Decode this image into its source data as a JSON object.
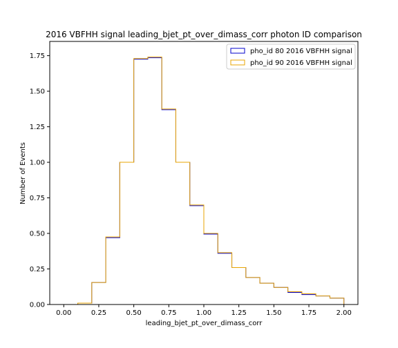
{
  "chart_data": {
    "type": "line",
    "title": "2016 VBFHH signal leading_bjet_pt_over_dimass_corr photon ID comparison",
    "xlabel": "leading_bjet_pt_over_dimass_corr",
    "ylabel": "Number of Events",
    "xlim": [
      -0.1,
      2.1
    ],
    "ylim": [
      0,
      1.85
    ],
    "xticks": [
      "0.00",
      "0.25",
      "0.50",
      "0.75",
      "1.00",
      "1.25",
      "1.50",
      "1.75",
      "2.00"
    ],
    "yticks": [
      "0.00",
      "0.25",
      "0.50",
      "0.75",
      "1.00",
      "1.25",
      "1.50",
      "1.75"
    ],
    "grid": false,
    "legend_position": "top-right",
    "bin_edges": [
      0.1,
      0.2,
      0.3,
      0.4,
      0.5,
      0.6,
      0.7,
      0.8,
      0.9,
      1.0,
      1.1,
      1.2,
      1.3,
      1.4,
      1.5,
      1.6,
      1.7,
      1.8,
      1.9,
      2.0
    ],
    "series": [
      {
        "name": "pho_id 80 2016 VBFHH signal",
        "color": "#0000cc",
        "values": [
          0.01,
          0.155,
          0.47,
          1.0,
          1.725,
          1.735,
          1.37,
          1.0,
          0.695,
          0.495,
          0.36,
          0.26,
          0.19,
          0.15,
          0.12,
          0.085,
          0.07,
          0.06,
          0.045
        ]
      },
      {
        "name": "pho_id 90 2016 VBFHH signal",
        "color": "#e8a400",
        "values": [
          0.01,
          0.155,
          0.475,
          1.0,
          1.73,
          1.74,
          1.375,
          1.0,
          0.7,
          0.5,
          0.365,
          0.26,
          0.19,
          0.15,
          0.12,
          0.09,
          0.075,
          0.06,
          0.045
        ]
      }
    ]
  }
}
